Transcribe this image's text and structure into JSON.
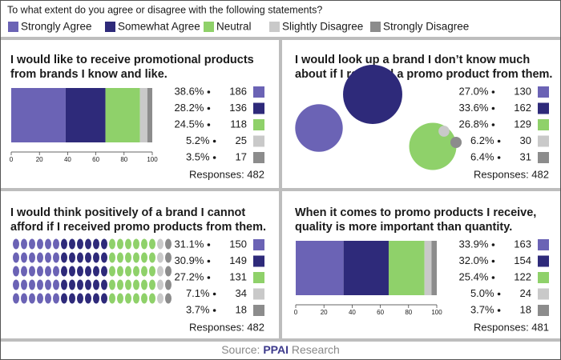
{
  "question": "To what extent do you agree or disagree with the following statements?",
  "legend": {
    "names": [
      "Strongly Agree",
      "Somewhat Agree",
      "Neutral",
      "Slightly Disagree",
      "Strongly Disagree"
    ],
    "colors": [
      "#6b63b5",
      "#2e2a7a",
      "#8fd16a",
      "#c9c9c9",
      "#8c8c8c"
    ]
  },
  "chart_data": [
    {
      "type": "stacked-bar",
      "title_lines": [
        "I would like to receive promotional products",
        "from brands I know and like."
      ],
      "values": [
        38.6,
        28.2,
        24.5,
        5.2,
        3.5
      ],
      "value_labels": [
        "38.6%",
        "28.2%",
        "24.5%",
        "5.2%",
        "3.5%"
      ],
      "counts": [
        186,
        136,
        118,
        25,
        17
      ],
      "responses": "Responses: 482",
      "xlim": [
        0,
        100
      ],
      "xticks": [
        0,
        20,
        40,
        60,
        80,
        100
      ]
    },
    {
      "type": "bubble",
      "title_lines": [
        "I would look up a brand I don’t know much",
        "about if I received a promo product from them."
      ],
      "values": [
        27.0,
        33.6,
        26.8,
        6.2,
        6.4
      ],
      "value_labels": [
        "27.0%",
        "33.6%",
        "26.8%",
        "6.2%",
        "6.4%"
      ],
      "counts": [
        130,
        162,
        129,
        30,
        31
      ],
      "responses": "Responses: 482"
    },
    {
      "type": "dots",
      "title_lines": [
        "I would think positively of a brand I cannot",
        "afford if I received promo products from them."
      ],
      "values": [
        31.1,
        30.9,
        27.2,
        7.1,
        3.7
      ],
      "value_labels": [
        "31.1%",
        "30.9%",
        "27.2%",
        "7.1%",
        "3.7%"
      ],
      "counts": [
        150,
        149,
        131,
        34,
        18
      ],
      "responses": "Responses: 482"
    },
    {
      "type": "stacked-bar",
      "title_lines": [
        "When it comes to promo products I receive,",
        "quality is more important than quantity."
      ],
      "values": [
        33.9,
        32.0,
        25.4,
        5.0,
        3.7
      ],
      "value_labels": [
        "33.9%",
        "32.0%",
        "25.4%",
        "5.0%",
        "3.7%"
      ],
      "counts": [
        163,
        154,
        122,
        24,
        18
      ],
      "responses": "Responses: 481",
      "xlim": [
        0,
        100
      ],
      "xticks": [
        0,
        20,
        40,
        60,
        80,
        100
      ]
    }
  ],
  "source": {
    "prefix": "Source:",
    "brand": "PPAI",
    "suffix": "Research"
  }
}
